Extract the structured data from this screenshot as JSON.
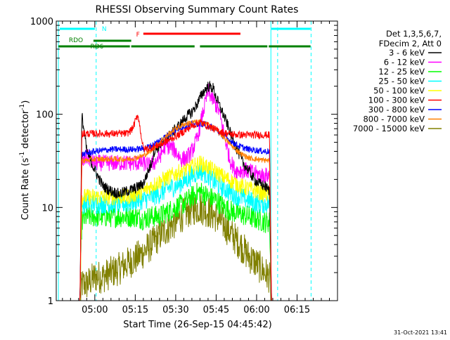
{
  "chart_data": {
    "type": "line",
    "title": "RHESSI Observing Summary Count Rates",
    "xlabel": "Start Time (26-Sep-15 04:45:42)",
    "ylabel_main": "Count Rate (s",
    "ylabel_sup1": "-1",
    "ylabel_mid": " detector",
    "ylabel_sup2": "-1",
    "ylabel_end": ")",
    "yscale": "log",
    "xlim": [
      285.7,
      390.0
    ],
    "ylim": [
      1,
      1000
    ],
    "x_ticks": [
      {
        "value": 300,
        "label": "05:00"
      },
      {
        "value": 315,
        "label": "05:15"
      },
      {
        "value": 330,
        "label": "05:30"
      },
      {
        "value": 345,
        "label": "05:45"
      },
      {
        "value": 360,
        "label": "06:00"
      },
      {
        "value": 375,
        "label": "06:15"
      }
    ],
    "y_ticks": [
      {
        "value": 1,
        "label": "1"
      },
      {
        "value": 10,
        "label": "10"
      },
      {
        "value": 100,
        "label": "100"
      },
      {
        "value": 1000,
        "label": "1000"
      }
    ],
    "legend": {
      "position": "top-right",
      "header_line1": "Det 1,3,5,6,7,",
      "header_line2": "FDecim 2, Att 0"
    },
    "series": [
      {
        "name": "3 - 6 keV",
        "color": "#000000",
        "x": [
          286.5,
          294.5,
          295.2,
          297,
          300,
          303,
          306,
          309,
          312,
          315,
          318,
          321,
          322,
          325,
          328,
          330,
          332,
          334,
          336,
          338,
          340,
          342,
          344,
          345,
          347,
          349,
          351,
          353,
          355,
          357,
          359,
          361,
          363,
          364.8,
          365.5,
          367
        ],
        "values": [
          1,
          1,
          100,
          40,
          25,
          17,
          15,
          14,
          15,
          16,
          18,
          30,
          40,
          50,
          60,
          70,
          80,
          95,
          105,
          130,
          170,
          200,
          190,
          150,
          110,
          80,
          55,
          40,
          30,
          25,
          20,
          18,
          17,
          15,
          1,
          1
        ]
      },
      {
        "name": "6 - 12 keV",
        "color": "#ff00ff",
        "x": [
          286.5,
          294.5,
          295.2,
          297,
          300,
          303,
          306,
          309,
          312,
          315,
          318,
          320,
          322,
          324,
          326,
          328,
          330,
          332,
          334,
          336,
          338,
          340,
          342,
          344,
          346,
          348,
          350,
          352,
          354,
          356,
          358,
          360,
          362,
          364.8,
          365.5,
          367
        ],
        "values": [
          1,
          1,
          30,
          35,
          30,
          30,
          30,
          30,
          30,
          30,
          30,
          28,
          30,
          35,
          45,
          45,
          40,
          33,
          34,
          40,
          55,
          100,
          180,
          140,
          110,
          60,
          33,
          25,
          25,
          25,
          24,
          23,
          22,
          22,
          1,
          1
        ]
      },
      {
        "name": "12 - 25 keV",
        "color": "#00ff00",
        "x": [
          286.5,
          294.5,
          295.2,
          297,
          300,
          303,
          306,
          309,
          312,
          315,
          318,
          321,
          324,
          327,
          330,
          333,
          336,
          339,
          342,
          345,
          348,
          351,
          354,
          357,
          360,
          363,
          364.8,
          365.5,
          367
        ],
        "values": [
          1,
          1,
          7,
          8,
          8,
          8,
          8,
          8,
          8,
          8,
          7.5,
          8,
          8,
          9,
          10,
          11,
          13,
          15,
          13,
          12,
          10,
          9,
          8.5,
          8,
          7.5,
          7,
          7,
          1,
          1
        ]
      },
      {
        "name": "25 - 50 keV",
        "color": "#00ffff",
        "x": [
          286.5,
          294.5,
          295.2,
          297,
          300,
          303,
          306,
          309,
          312,
          315,
          318,
          321,
          324,
          327,
          330,
          333,
          336,
          339,
          342,
          345,
          348,
          351,
          354,
          357,
          360,
          363,
          364.8,
          365.5,
          367
        ],
        "values": [
          1,
          1,
          11,
          11,
          11,
          11,
          11,
          11,
          11,
          12,
          12,
          13,
          14,
          16,
          17,
          19,
          22,
          25,
          22,
          18,
          16,
          14,
          13,
          12,
          11,
          11,
          11,
          1,
          1
        ]
      },
      {
        "name": "50 - 100 keV",
        "color": "#ffff00",
        "x": [
          286.5,
          294.5,
          295.2,
          297,
          300,
          303,
          306,
          309,
          312,
          315,
          318,
          321,
          324,
          327,
          330,
          333,
          336,
          339,
          342,
          345,
          348,
          351,
          354,
          357,
          360,
          363,
          364.8,
          365.5,
          367
        ],
        "values": [
          1,
          1,
          13,
          13,
          13,
          13,
          13,
          13,
          13,
          14,
          15,
          17,
          19,
          21,
          23,
          25,
          27,
          30,
          27,
          24,
          21,
          19,
          17,
          16,
          15,
          14,
          14,
          1,
          1
        ]
      },
      {
        "name": "100 - 300 keV",
        "color": "#ff0000",
        "x": [
          286.5,
          294.5,
          295.2,
          297,
          300,
          303,
          306,
          309,
          312,
          314,
          316,
          318,
          321,
          324,
          327,
          330,
          333,
          336,
          339,
          342,
          345,
          348,
          351,
          354,
          357,
          360,
          363,
          364.8,
          365.5,
          367
        ],
        "values": [
          1,
          1,
          62,
          62,
          62,
          62,
          62,
          62,
          62,
          70,
          100,
          42,
          44,
          47,
          52,
          58,
          65,
          75,
          82,
          75,
          68,
          63,
          61,
          60,
          60,
          60,
          60,
          60,
          1,
          1
        ]
      },
      {
        "name": "300 - 800 keV",
        "color": "#0000ff",
        "x": [
          286.5,
          294.5,
          295.2,
          297,
          300,
          303,
          306,
          309,
          312,
          315,
          318,
          321,
          324,
          327,
          330,
          333,
          336,
          339,
          342,
          345,
          348,
          351,
          354,
          357,
          360,
          363,
          364.8,
          365.5,
          367
        ],
        "values": [
          1,
          1,
          37,
          38,
          40,
          41,
          42,
          42,
          42,
          42,
          43,
          46,
          52,
          60,
          68,
          74,
          78,
          80,
          76,
          68,
          58,
          50,
          45,
          42,
          41,
          40,
          40,
          1,
          1
        ]
      },
      {
        "name": "800 - 7000 keV",
        "color": "#ff8000",
        "x": [
          286.5,
          294.5,
          295.2,
          297,
          300,
          303,
          306,
          309,
          312,
          315,
          318,
          321,
          324,
          327,
          330,
          333,
          336,
          339,
          342,
          345,
          348,
          351,
          354,
          357,
          360,
          363,
          364.8,
          365.5,
          367
        ],
        "values": [
          1,
          1,
          32,
          32,
          33,
          33,
          33,
          33,
          33,
          34,
          36,
          41,
          50,
          60,
          70,
          78,
          82,
          83,
          78,
          68,
          56,
          45,
          38,
          34,
          33,
          32,
          32,
          1,
          1
        ]
      },
      {
        "name": "7000 - 15000 keV",
        "color": "#808000",
        "x": [
          286.5,
          294.5,
          295.2,
          297,
          300,
          303,
          306,
          309,
          312,
          315,
          318,
          321,
          324,
          327,
          330,
          333,
          336,
          339,
          342,
          345,
          348,
          351,
          354,
          357,
          360,
          363,
          364.8,
          365.5,
          367
        ],
        "values": [
          1,
          1,
          1.5,
          1.5,
          1.8,
          1.8,
          2,
          2.2,
          2.5,
          2.8,
          3.3,
          4,
          5,
          6,
          7,
          8.5,
          9.5,
          10,
          9,
          8,
          6.5,
          5,
          4,
          3,
          2.5,
          2,
          1.8,
          1,
          1
        ]
      }
    ],
    "status_bars": [
      {
        "label": "N",
        "color": "#00ffff",
        "segments": [
          [
            287,
            300
          ],
          [
            365.5,
            380
          ]
        ]
      },
      {
        "label": "F",
        "color": "#ff0000",
        "segments": [
          [
            318,
            354
          ]
        ]
      },
      {
        "label": "RDO",
        "color": "#008000",
        "segments": [
          [
            299.5,
            313.5
          ]
        ]
      },
      {
        "label": "RD6",
        "color": "#008000",
        "segments": [
          [
            286.5,
            313
          ],
          [
            313.5,
            337
          ],
          [
            339,
            364
          ],
          [
            364.5,
            380
          ]
        ]
      }
    ],
    "vertical_markers": [
      {
        "x": 286.5,
        "color": "#00ffff",
        "style": "solid"
      },
      {
        "x": 300.5,
        "color": "#00ffff",
        "style": "dashed"
      },
      {
        "x": 365.3,
        "color": "#00ffff",
        "style": "solid"
      },
      {
        "x": 367.8,
        "color": "#00ffff",
        "style": "dashed"
      },
      {
        "x": 380.2,
        "color": "#00ffff",
        "style": "dashed"
      }
    ],
    "timestamp": "31-Oct-2021 13:41"
  }
}
